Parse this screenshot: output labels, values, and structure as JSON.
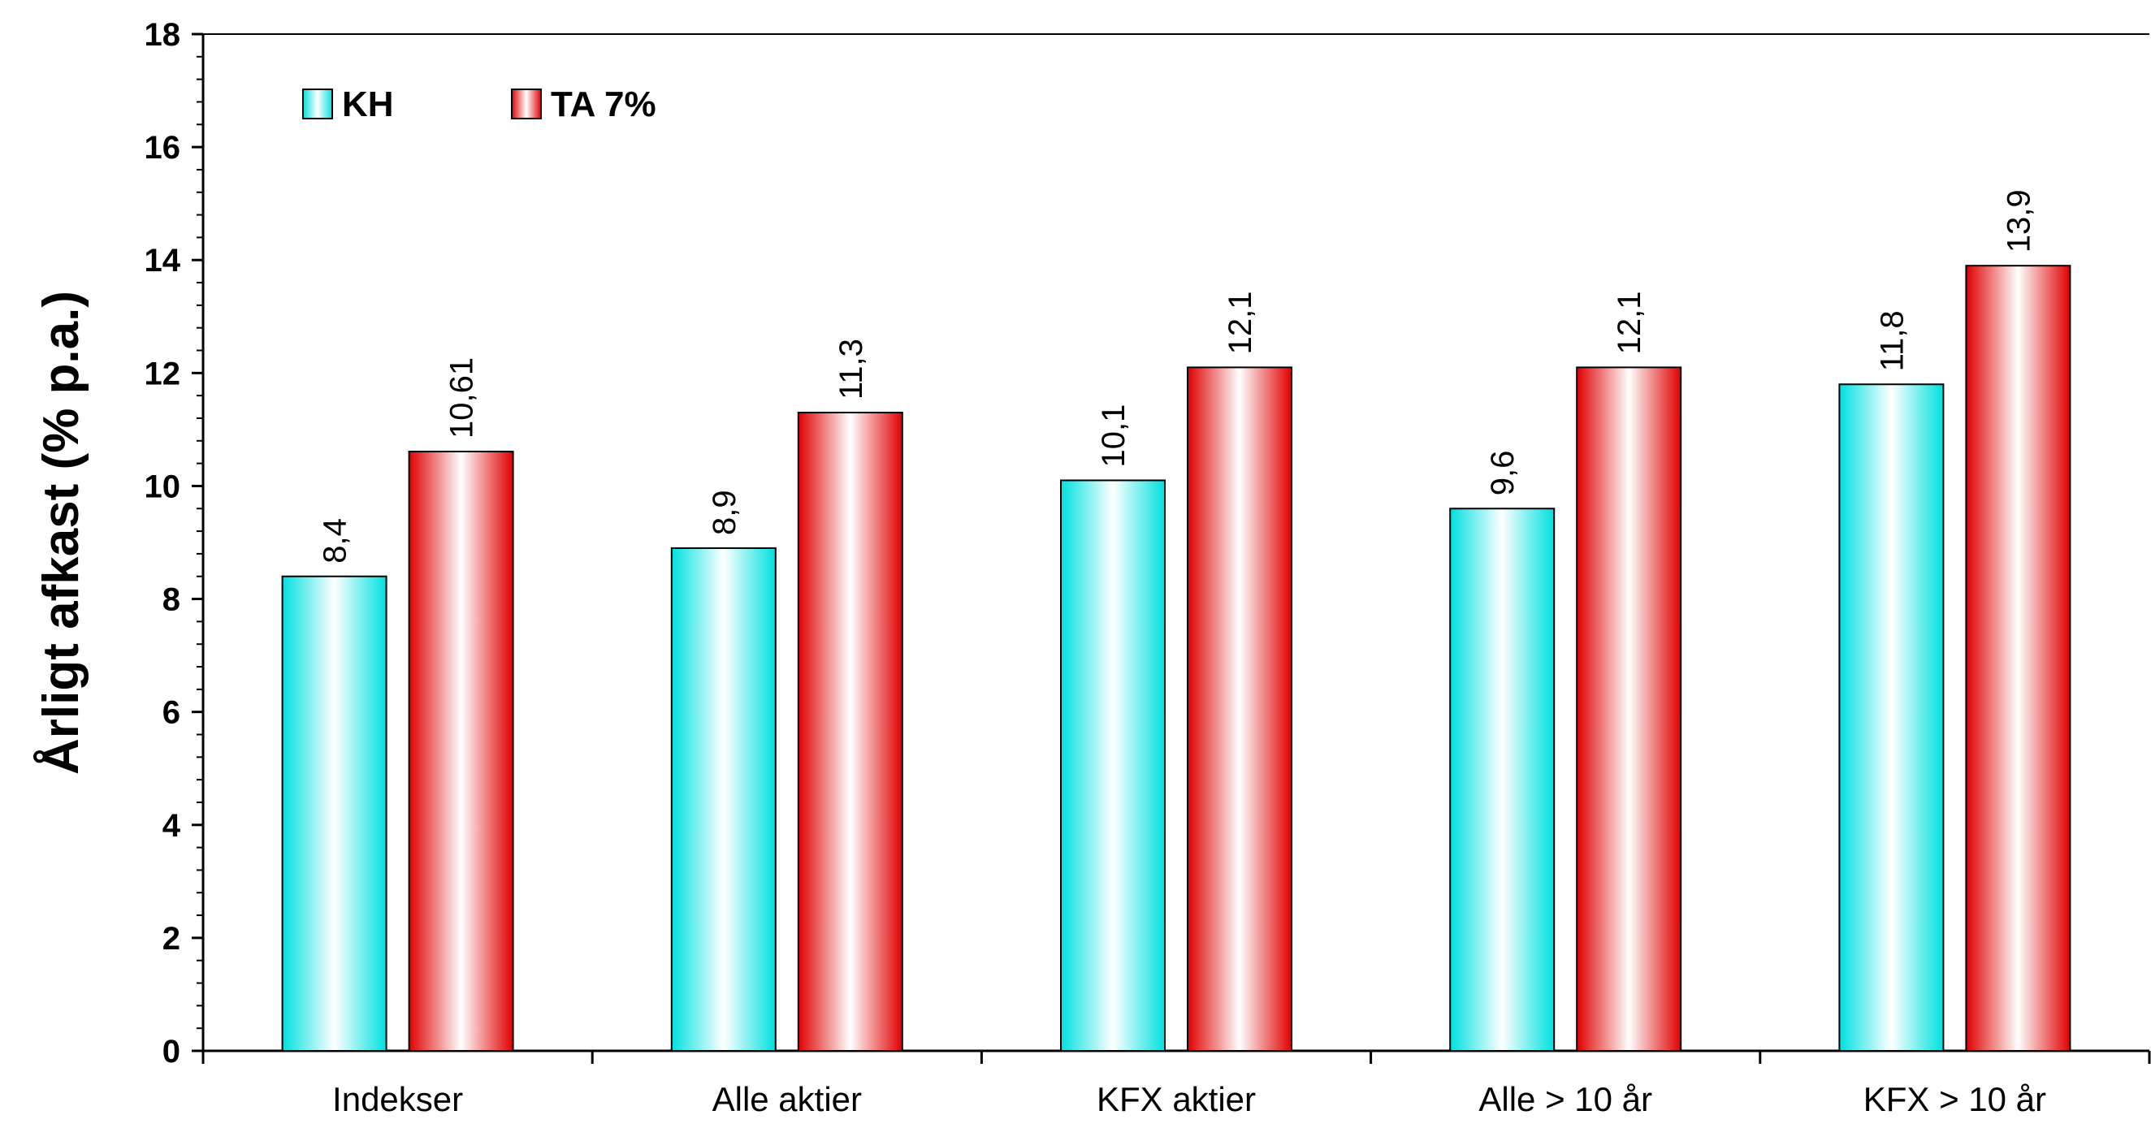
{
  "chart_data": {
    "type": "bar",
    "title": "",
    "xlabel": "",
    "ylabel": "Årligt afkast (% p.a.)",
    "ylim": [
      0,
      18
    ],
    "yticks": [
      0,
      2,
      4,
      6,
      8,
      10,
      12,
      14,
      16,
      18
    ],
    "grid": false,
    "legend_position": "top-left",
    "categories": [
      "Indekser",
      "Alle aktier",
      "KFX aktier",
      "Alle > 10 år",
      "KFX > 10 år"
    ],
    "series": [
      {
        "name": "KH",
        "values": [
          8.4,
          8.9,
          10.1,
          9.6,
          11.8
        ],
        "labels": [
          "8,4",
          "8,9",
          "10,1",
          "9,6",
          "11,8"
        ],
        "color": "#00e5e5"
      },
      {
        "name": "TA 7%",
        "values": [
          10.61,
          11.3,
          12.1,
          12.1,
          13.9
        ],
        "labels": [
          "10,61",
          "11,3",
          "12,1",
          "12,1",
          "13,9"
        ],
        "color": "#e00000"
      }
    ]
  }
}
